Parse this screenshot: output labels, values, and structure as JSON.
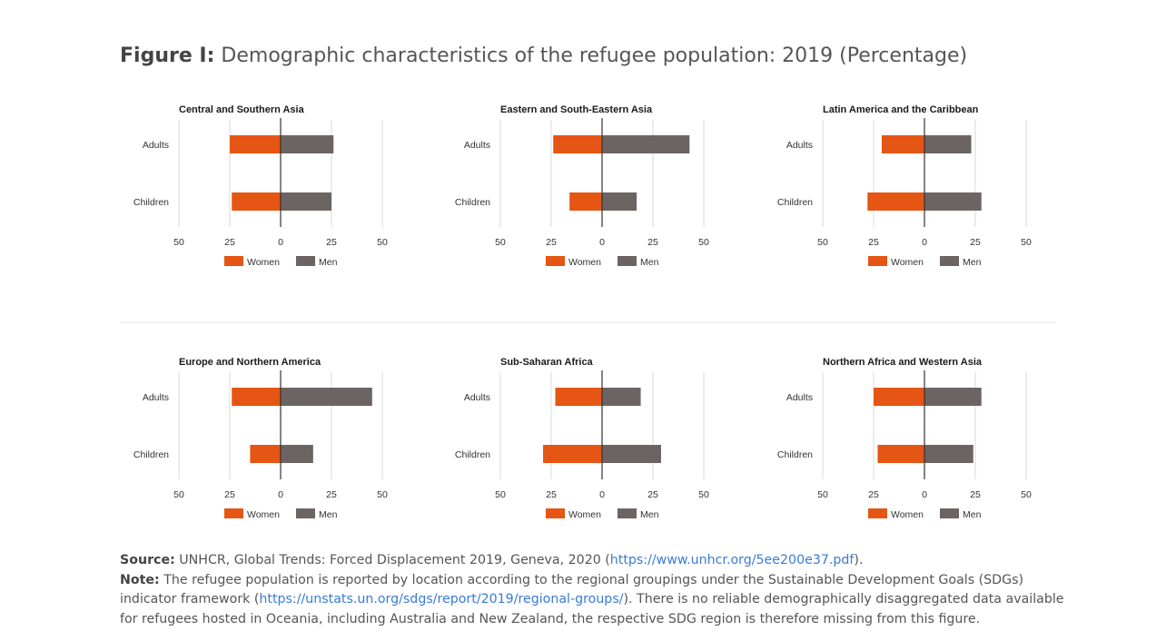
{
  "figure": {
    "label": "Figure I:",
    "title": "Demographic characteristics of the refugee population: 2019 (Percentage)"
  },
  "chart_data": [
    {
      "type": "bar",
      "orientation": "horizontal-diverging",
      "title": "Central and Southern Asia",
      "categories": [
        "Adults",
        "Children"
      ],
      "xlim": [
        -50,
        50
      ],
      "ticks": [
        -50,
        -25,
        0,
        25,
        50
      ],
      "tick_labels": [
        "50",
        "25",
        "0",
        "25",
        "50"
      ],
      "series": [
        {
          "name": "Women",
          "values": [
            25,
            24
          ]
        },
        {
          "name": "Men",
          "values": [
            26,
            25
          ]
        }
      ],
      "legend": "bottom"
    },
    {
      "type": "bar",
      "orientation": "horizontal-diverging",
      "title": "Eastern and South-Eastern Asia",
      "categories": [
        "Adults",
        "Children"
      ],
      "xlim": [
        -50,
        50
      ],
      "ticks": [
        -50,
        -25,
        0,
        25,
        50
      ],
      "tick_labels": [
        "50",
        "25",
        "0",
        "25",
        "50"
      ],
      "series": [
        {
          "name": "Women",
          "values": [
            24,
            16
          ]
        },
        {
          "name": "Men",
          "values": [
            43,
            17
          ]
        }
      ],
      "legend": "bottom"
    },
    {
      "type": "bar",
      "orientation": "horizontal-diverging",
      "title": "Latin America and the Caribbean",
      "categories": [
        "Adults",
        "Children"
      ],
      "xlim": [
        -50,
        50
      ],
      "ticks": [
        -50,
        -25,
        0,
        25,
        50
      ],
      "tick_labels": [
        "50",
        "25",
        "0",
        "25",
        "50"
      ],
      "series": [
        {
          "name": "Women",
          "values": [
            21,
            28
          ]
        },
        {
          "name": "Men",
          "values": [
            23,
            28
          ]
        }
      ],
      "legend": "bottom"
    },
    {
      "type": "bar",
      "orientation": "horizontal-diverging",
      "title": "Europe and Northern America",
      "categories": [
        "Adults",
        "Children"
      ],
      "xlim": [
        -50,
        50
      ],
      "ticks": [
        -50,
        -25,
        0,
        25,
        50
      ],
      "tick_labels": [
        "50",
        "25",
        "0",
        "25",
        "50"
      ],
      "series": [
        {
          "name": "Women",
          "values": [
            24,
            15
          ]
        },
        {
          "name": "Men",
          "values": [
            45,
            16
          ]
        }
      ],
      "legend": "bottom"
    },
    {
      "type": "bar",
      "orientation": "horizontal-diverging",
      "title": "Sub-Saharan Africa",
      "categories": [
        "Adults",
        "Children"
      ],
      "xlim": [
        -50,
        50
      ],
      "ticks": [
        -50,
        -25,
        0,
        25,
        50
      ],
      "tick_labels": [
        "50",
        "25",
        "0",
        "25",
        "50"
      ],
      "series": [
        {
          "name": "Women",
          "values": [
            23,
            29
          ]
        },
        {
          "name": "Men",
          "values": [
            19,
            29
          ]
        }
      ],
      "legend": "bottom"
    },
    {
      "type": "bar",
      "orientation": "horizontal-diverging",
      "title": "Northern Africa and Western Asia",
      "categories": [
        "Adults",
        "Children"
      ],
      "xlim": [
        -50,
        50
      ],
      "ticks": [
        -50,
        -25,
        0,
        25,
        50
      ],
      "tick_labels": [
        "50",
        "25",
        "0",
        "25",
        "50"
      ],
      "series": [
        {
          "name": "Women",
          "values": [
            25,
            23
          ]
        },
        {
          "name": "Men",
          "values": [
            28,
            24
          ]
        }
      ],
      "legend": "bottom"
    }
  ],
  "colors": {
    "women": "#e55513",
    "men": "#6b6462",
    "grid": "#d9d9d9",
    "axis": "#333333"
  },
  "notes": {
    "source_label": "Source:",
    "source_text": " UNHCR, Global Trends: Forced Displacement 2019, Geneva, 2020 (",
    "source_link": "https://www.unhcr.org/5ee200e37.pdf",
    "source_end": ").",
    "note_label": "Note:",
    "note_text_1": " The refugee population is reported by location according to the regional groupings under the Sustainable Development Goals (SDGs) indicator framework (",
    "note_link": "https://unstats.un.org/sdgs/report/2019/regional-groups/",
    "note_text_2": "). There is no reliable demographically disaggregated data available for refugees hosted in Oceania, including Australia and New Zealand, the respective SDG region is therefore missing from this figure."
  }
}
